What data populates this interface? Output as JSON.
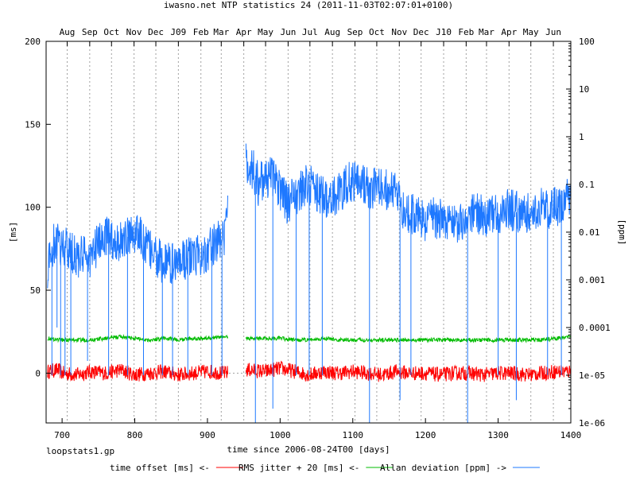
{
  "chart_data": {
    "type": "line",
    "title": "iwasno.net NTP statistics 24 (2011-11-03T02:07:01+0100)",
    "xlabel": "time since 2006-08-24T00 [days]",
    "ylabel": "[ms]",
    "y2label": "[ppm]",
    "footer_label": "loopstats1.gp",
    "xlim": [
      678,
      1400
    ],
    "ylim": [
      -30,
      200
    ],
    "y2lim_log": [
      1e-06,
      100
    ],
    "x_ticks": [
      700,
      800,
      900,
      1000,
      1100,
      1200,
      1300,
      1400
    ],
    "y_ticks": [
      0,
      50,
      100,
      150,
      200
    ],
    "y2_ticks": [
      {
        "value": 1e-06,
        "label": "1e-06"
      },
      {
        "value": 1e-05,
        "label": "1e-05"
      },
      {
        "value": 0.0001,
        "label": "0.0001"
      },
      {
        "value": 0.001,
        "label": "0.001"
      },
      {
        "value": 0.01,
        "label": "0.01"
      },
      {
        "value": 0.1,
        "label": "0.1"
      },
      {
        "value": 1,
        "label": "1"
      },
      {
        "value": 10,
        "label": "10"
      },
      {
        "value": 100,
        "label": "100"
      }
    ],
    "month_ticks": [
      {
        "label": "Aug",
        "x": 707
      },
      {
        "label": "Sep",
        "x": 738
      },
      {
        "label": "Oct",
        "x": 768
      },
      {
        "label": "Nov",
        "x": 799
      },
      {
        "label": "Dec",
        "x": 829
      },
      {
        "label": "J09",
        "x": 860
      },
      {
        "label": "Feb",
        "x": 891
      },
      {
        "label": "Mar",
        "x": 919
      },
      {
        "label": "Apr",
        "x": 950
      },
      {
        "label": "May",
        "x": 980
      },
      {
        "label": "Jun",
        "x": 1011
      },
      {
        "label": "Jul",
        "x": 1041
      },
      {
        "label": "Aug",
        "x": 1072
      },
      {
        "label": "Sep",
        "x": 1103
      },
      {
        "label": "Oct",
        "x": 1133
      },
      {
        "label": "Nov",
        "x": 1164
      },
      {
        "label": "Dec",
        "x": 1194
      },
      {
        "label": "J10",
        "x": 1225
      },
      {
        "label": "Feb",
        "x": 1256
      },
      {
        "label": "Mar",
        "x": 1284
      },
      {
        "label": "Apr",
        "x": 1315
      },
      {
        "label": "May",
        "x": 1345
      },
      {
        "label": "Jun",
        "x": 1376
      }
    ],
    "gap": [
      928,
      953
    ],
    "series": [
      {
        "name": "time offset [ms] <-",
        "color": "#ff0000",
        "axis": "left",
        "points": [
          [
            680,
            1
          ],
          [
            695,
            2
          ],
          [
            700,
            0
          ],
          [
            720,
            -1
          ],
          [
            740,
            1
          ],
          [
            760,
            0
          ],
          [
            780,
            2
          ],
          [
            800,
            -1
          ],
          [
            820,
            0
          ],
          [
            840,
            1
          ],
          [
            860,
            -1
          ],
          [
            880,
            0
          ],
          [
            900,
            1
          ],
          [
            925,
            0
          ],
          [
            955,
            2
          ],
          [
            980,
            1
          ],
          [
            1000,
            3
          ],
          [
            1020,
            1
          ],
          [
            1040,
            -1
          ],
          [
            1060,
            1
          ],
          [
            1080,
            0
          ],
          [
            1100,
            1
          ],
          [
            1120,
            0
          ],
          [
            1140,
            -1
          ],
          [
            1160,
            1
          ],
          [
            1180,
            0
          ],
          [
            1200,
            0
          ],
          [
            1220,
            -1
          ],
          [
            1240,
            0
          ],
          [
            1260,
            0
          ],
          [
            1280,
            -1
          ],
          [
            1300,
            0
          ],
          [
            1320,
            0
          ],
          [
            1340,
            -1
          ],
          [
            1360,
            0
          ],
          [
            1380,
            1
          ],
          [
            1400,
            1
          ]
        ]
      },
      {
        "name": "RMS jitter + 20 [ms] <-",
        "color": "#00bb00",
        "axis": "left",
        "points": [
          [
            680,
            21
          ],
          [
            700,
            20
          ],
          [
            720,
            20
          ],
          [
            740,
            20
          ],
          [
            760,
            21
          ],
          [
            780,
            22
          ],
          [
            800,
            21
          ],
          [
            820,
            20
          ],
          [
            840,
            21
          ],
          [
            860,
            20
          ],
          [
            880,
            21
          ],
          [
            900,
            21
          ],
          [
            925,
            22
          ],
          [
            955,
            21
          ],
          [
            980,
            21
          ],
          [
            1000,
            21
          ],
          [
            1020,
            20
          ],
          [
            1040,
            20
          ],
          [
            1060,
            21
          ],
          [
            1080,
            20
          ],
          [
            1100,
            20
          ],
          [
            1120,
            20
          ],
          [
            1140,
            20
          ],
          [
            1160,
            20
          ],
          [
            1180,
            20
          ],
          [
            1200,
            20
          ],
          [
            1220,
            20
          ],
          [
            1240,
            20
          ],
          [
            1260,
            20
          ],
          [
            1280,
            20
          ],
          [
            1300,
            20
          ],
          [
            1320,
            20
          ],
          [
            1340,
            20
          ],
          [
            1360,
            20
          ],
          [
            1380,
            21
          ],
          [
            1400,
            22
          ]
        ]
      },
      {
        "name": "Allan deviation [ppm] ->",
        "color": "#1e78ff",
        "axis": "right",
        "points": [
          [
            680,
            0.0015
          ],
          [
            690,
            0.006
          ],
          [
            700,
            0.005
          ],
          [
            710,
            0.004
          ],
          [
            720,
            0.003
          ],
          [
            740,
            0.003
          ],
          [
            760,
            0.008
          ],
          [
            780,
            0.006
          ],
          [
            800,
            0.01
          ],
          [
            820,
            0.004
          ],
          [
            840,
            0.002
          ],
          [
            860,
            0.0025
          ],
          [
            880,
            0.003
          ],
          [
            900,
            0.004
          ],
          [
            925,
            0.008
          ],
          [
            955,
            0.3
          ],
          [
            970,
            0.1
          ],
          [
            990,
            0.15
          ],
          [
            1000,
            0.08
          ],
          [
            1010,
            0.04
          ],
          [
            1020,
            0.06
          ],
          [
            1040,
            0.1
          ],
          [
            1060,
            0.05
          ],
          [
            1080,
            0.06
          ],
          [
            1100,
            0.12
          ],
          [
            1110,
            0.15
          ],
          [
            1120,
            0.08
          ],
          [
            1140,
            0.08
          ],
          [
            1160,
            0.06
          ],
          [
            1170,
            0.03
          ],
          [
            1190,
            0.02
          ],
          [
            1200,
            0.015
          ],
          [
            1210,
            0.02
          ],
          [
            1230,
            0.02
          ],
          [
            1250,
            0.015
          ],
          [
            1270,
            0.025
          ],
          [
            1290,
            0.02
          ],
          [
            1310,
            0.03
          ],
          [
            1330,
            0.025
          ],
          [
            1350,
            0.03
          ],
          [
            1370,
            0.03
          ],
          [
            1390,
            0.04
          ],
          [
            1400,
            0.06
          ]
        ],
        "spikes": [
          [
            686,
            1e-05
          ],
          [
            693,
            0.0001
          ],
          [
            698,
            1e-05
          ],
          [
            704,
            1e-05
          ],
          [
            712,
            1e-05
          ],
          [
            735,
            2e-05
          ],
          [
            764,
            1e-05
          ],
          [
            790,
            1e-05
          ],
          [
            812,
            1e-05
          ],
          [
            838,
            1e-05
          ],
          [
            852,
            1e-05
          ],
          [
            873,
            1e-05
          ],
          [
            906,
            1e-05
          ],
          [
            920,
            1e-05
          ],
          [
            966,
            1e-06
          ],
          [
            990,
            2e-06
          ],
          [
            1022,
            1e-05
          ],
          [
            1040,
            1e-05
          ],
          [
            1058,
            1e-05
          ],
          [
            1123,
            1e-06
          ],
          [
            1165,
            3e-06
          ],
          [
            1180,
            1e-05
          ],
          [
            1258,
            1e-06
          ],
          [
            1300,
            1e-05
          ],
          [
            1325,
            3e-06
          ],
          [
            1368,
            1e-05
          ],
          [
            1387,
            1e-05
          ]
        ]
      }
    ],
    "legend_position": "bottom"
  }
}
